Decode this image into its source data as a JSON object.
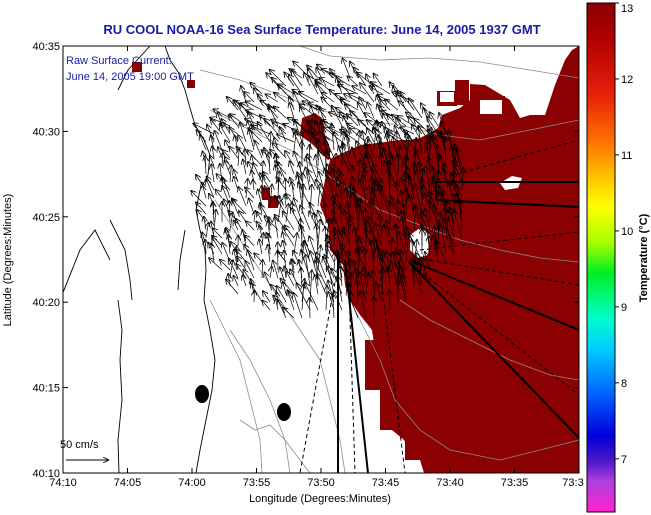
{
  "title": "RU COOL  NOAA-16  Sea Surface Temperature:  June 14, 2005 1937 GMT",
  "annotation": {
    "line1": "Raw Surface Current:",
    "line2": "June 14, 2005 19:00 GMT"
  },
  "axes": {
    "xlabel": "Longitude (Degrees:Minutes)",
    "ylabel": "Latitude (Degrees:Minutes)",
    "x_ticks": [
      "74:10",
      "74:05",
      "74:00",
      "73:55",
      "73:50",
      "73:45",
      "73:40",
      "73:35",
      "73:3"
    ],
    "y_ticks": [
      "40:35",
      "40:30",
      "40:25",
      "40:20",
      "40:15",
      "40:10"
    ]
  },
  "colorbar": {
    "label": "Temperature (°C)",
    "ticks": [
      "13",
      "12",
      "11",
      "10",
      "9",
      "8",
      "7"
    ],
    "range": [
      6.3,
      13
    ]
  },
  "scale_vector": {
    "label": "50 cm/s"
  },
  "colors": {
    "title": "#1a1aa8",
    "sst_fill": "#8b0000",
    "vectors": "#000000",
    "contours": "#8c8c8c"
  }
}
